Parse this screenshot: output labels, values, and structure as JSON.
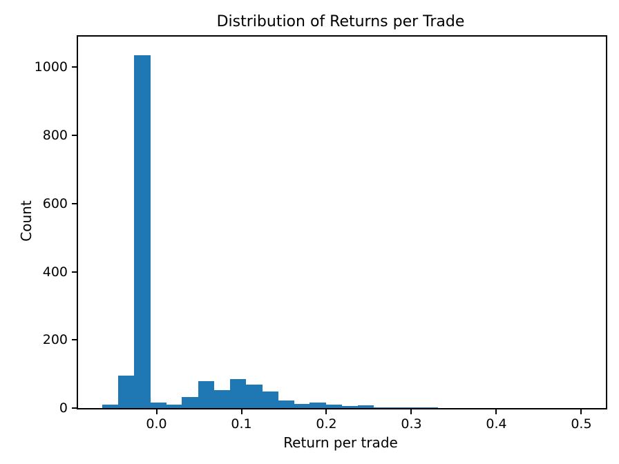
{
  "chart_data": {
    "type": "bar",
    "subtype": "histogram",
    "title": "Distribution of Returns per Trade",
    "xlabel": "Return per trade",
    "ylabel": "Count",
    "bar_color": "#1f77b4",
    "axis_color": "#000000",
    "background_color": "#ffffff",
    "grid": false,
    "legend_position": "none",
    "bin_start": -0.064,
    "bin_width": 0.0188,
    "counts": [
      10,
      95,
      1035,
      17,
      10,
      33,
      80,
      52,
      85,
      68,
      48,
      22,
      12,
      17,
      10,
      6,
      8,
      2,
      2,
      2,
      2,
      0,
      0,
      0,
      0,
      0,
      0,
      0,
      0,
      1
    ],
    "xlim": [
      -0.0923,
      0.5289
    ],
    "ylim": [
      0,
      1090
    ],
    "xticks": [
      0.0,
      0.1,
      0.2,
      0.3,
      0.4,
      0.5
    ],
    "xtick_labels": [
      "0.0",
      "0.1",
      "0.2",
      "0.3",
      "0.4",
      "0.5"
    ],
    "yticks": [
      0,
      200,
      400,
      600,
      800,
      1000
    ],
    "ytick_labels": [
      "0",
      "200",
      "400",
      "600",
      "800",
      "1000"
    ]
  }
}
